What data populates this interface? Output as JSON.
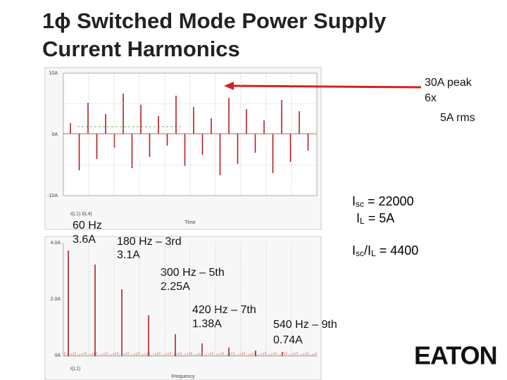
{
  "slide": {
    "title_lines": [
      "1ϕ Switched Mode Power Supply",
      "Current Harmonics"
    ],
    "waveform": {
      "y_labels": [
        "10A",
        "0A",
        "-10A"
      ],
      "legend": "I(L1)  I(L4)",
      "x_title": "Time"
    },
    "spectrum": {
      "y_labels": [
        "4.0A",
        "2.0A",
        "0A"
      ],
      "legend": "I(L1)",
      "x_title": "Frequency"
    },
    "peak_notes": [
      "30A peak",
      "6x",
      "5A rms"
    ],
    "harmonics": [
      {
        "label": "60 Hz",
        "current": "3.6A"
      },
      {
        "label": "180 Hz – 3rd",
        "current": "3.1A"
      },
      {
        "label": "300 Hz – 5th",
        "current": "2.25A"
      },
      {
        "label": "420 Hz – 7th",
        "current": "1.38A"
      },
      {
        "label": "540 Hz – 9th",
        "current": "0.74A"
      }
    ],
    "formulas": [
      {
        "main": "I",
        "sub": "sc",
        "rest": " = 22000"
      },
      {
        "main": "I",
        "sub": "L",
        "rest": " = 5A"
      },
      {
        "main": "I",
        "sub": "sc",
        "rest": "/I",
        "sub2": "L",
        "rest2": " = 4400"
      }
    ],
    "logo": "EATON"
  }
}
